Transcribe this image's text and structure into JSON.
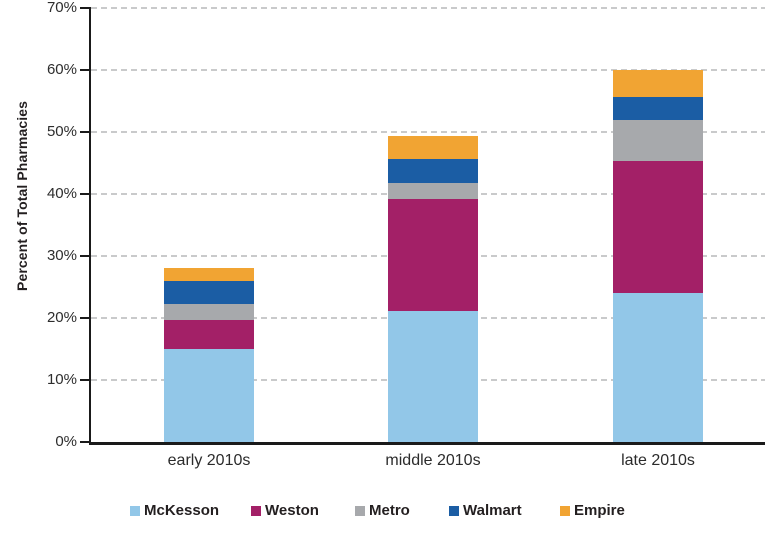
{
  "chart_data": {
    "type": "bar",
    "stacked": true,
    "title": "",
    "ylabel": "Percent of Total Pharmacies",
    "xlabel": "",
    "ylim": [
      0,
      70
    ],
    "y_tick_step": 10,
    "y_tick_labels": [
      "0%",
      "10%",
      "20%",
      "30%",
      "40%",
      "50%",
      "60%",
      "70%"
    ],
    "grid": "dashed horizontal",
    "legend_position": "bottom",
    "categories": [
      "early 2010s",
      "middle 2010s",
      "late 2010s"
    ],
    "series": [
      {
        "name": "McKesson",
        "color": "#92C7E8",
        "values": [
          15.0,
          21.1,
          24.0
        ]
      },
      {
        "name": "Weston",
        "color": "#A32067",
        "values": [
          4.7,
          18.1,
          21.4
        ]
      },
      {
        "name": "Metro",
        "color": "#A7A9AC",
        "values": [
          2.5,
          2.5,
          6.6
        ]
      },
      {
        "name": "Walmart",
        "color": "#1B5DA4",
        "values": [
          3.8,
          3.9,
          3.7
        ]
      },
      {
        "name": "Empire",
        "color": "#F1A433",
        "values": [
          2.1,
          3.8,
          4.3
        ]
      }
    ],
    "bar_totals": [
      28.1,
      49.2,
      60.0
    ],
    "axis_color": "#1A1A1A",
    "gridline_color": "#C9CACB",
    "text_color": "#231F20"
  }
}
